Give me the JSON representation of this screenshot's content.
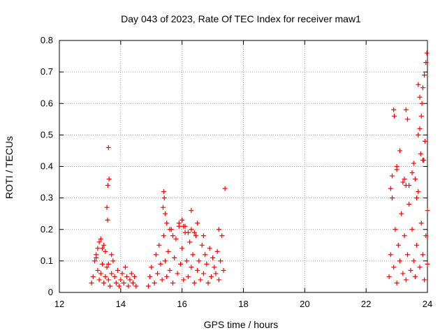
{
  "chart_data": {
    "type": "scatter",
    "title": "Day 043 of 2023, Rate Of TEC Index for receiver maw1",
    "xlabel": "GPS time / hours",
    "ylabel": "ROTI / TECUs",
    "xlim": [
      12,
      24
    ],
    "ylim": [
      0,
      0.8
    ],
    "xticks": [
      "12",
      "14",
      "16",
      "18",
      "20",
      "22",
      "24"
    ],
    "yticks": [
      "0",
      "0.1",
      "0.2",
      "0.3",
      "0.4",
      "0.5",
      "0.6",
      "0.7",
      "0.8"
    ],
    "grid": true,
    "marker": "plus",
    "color": "#ff0000",
    "series": [
      {
        "x": [
          13.05,
          13.1,
          13.15,
          13.2,
          13.25,
          13.3,
          13.35,
          13.4,
          13.45,
          13.5,
          13.55,
          13.6,
          13.65,
          13.7,
          13.75,
          13.8,
          13.85,
          13.9,
          13.95,
          14.0,
          14.05,
          14.1,
          14.15,
          14.2,
          14.25,
          14.3,
          14.35,
          14.4,
          14.45,
          14.5,
          13.3,
          13.35,
          13.6,
          13.62,
          13.58,
          13.55,
          13.57,
          13.45,
          13.4,
          13.5,
          13.6,
          13.7,
          13.2,
          13.25,
          14.9,
          14.95,
          15.0,
          15.1,
          15.15,
          15.2,
          15.25,
          15.3,
          15.35,
          15.4,
          15.45,
          15.5,
          15.55,
          15.6,
          15.65,
          15.7,
          15.75,
          15.8,
          15.85,
          15.9,
          15.95,
          16.0,
          16.05,
          16.1,
          16.15,
          16.2,
          16.25,
          16.3,
          16.35,
          16.4,
          16.45,
          16.5,
          16.55,
          16.6,
          16.65,
          16.7,
          16.75,
          16.8,
          16.85,
          16.9,
          16.95,
          17.0,
          17.05,
          17.1,
          17.15,
          17.2,
          17.25,
          17.3,
          17.35,
          15.4,
          15.42,
          15.45,
          15.38,
          15.5,
          15.6,
          15.9,
          16.0,
          16.1,
          16.2,
          16.3,
          16.4,
          16.5,
          16.7,
          17.2,
          17.4,
          16.3,
          16.05,
          15.7,
          22.75,
          22.8,
          22.85,
          22.9,
          22.95,
          23.0,
          23.05,
          23.1,
          23.15,
          23.2,
          23.25,
          23.3,
          23.35,
          23.4,
          23.45,
          23.5,
          23.55,
          23.6,
          23.65,
          23.7,
          23.75,
          23.8,
          23.85,
          23.9,
          23.95,
          24.0,
          22.9,
          22.92,
          23.0,
          23.3,
          23.35,
          23.2,
          23.7,
          23.75,
          23.8,
          23.78,
          23.82,
          23.85,
          23.9,
          23.95,
          23.98,
          23.85,
          23.6,
          23.5,
          23.4,
          23.1,
          22.8,
          22.85,
          23.0,
          23.25,
          23.3,
          23.55,
          23.65,
          23.88,
          23.92,
          24.0,
          23.7,
          23.75
        ],
        "y": [
          0.03,
          0.05,
          0.1,
          0.12,
          0.07,
          0.04,
          0.06,
          0.09,
          0.03,
          0.05,
          0.08,
          0.04,
          0.02,
          0.06,
          0.1,
          0.05,
          0.03,
          0.07,
          0.02,
          0.04,
          0.06,
          0.03,
          0.08,
          0.05,
          0.02,
          0.04,
          0.06,
          0.03,
          0.05,
          0.02,
          0.16,
          0.17,
          0.46,
          0.36,
          0.34,
          0.27,
          0.23,
          0.15,
          0.14,
          0.13,
          0.09,
          0.12,
          0.11,
          0.14,
          0.02,
          0.05,
          0.08,
          0.03,
          0.12,
          0.06,
          0.15,
          0.09,
          0.04,
          0.18,
          0.1,
          0.05,
          0.13,
          0.07,
          0.2,
          0.03,
          0.11,
          0.17,
          0.06,
          0.21,
          0.09,
          0.14,
          0.04,
          0.19,
          0.1,
          0.05,
          0.16,
          0.08,
          0.12,
          0.03,
          0.18,
          0.07,
          0.1,
          0.04,
          0.15,
          0.06,
          0.12,
          0.09,
          0.03,
          0.14,
          0.05,
          0.11,
          0.08,
          0.06,
          0.13,
          0.04,
          0.1,
          0.18,
          0.07,
          0.32,
          0.3,
          0.25,
          0.27,
          0.22,
          0.2,
          0.22,
          0.23,
          0.21,
          0.19,
          0.2,
          0.19,
          0.22,
          0.18,
          0.2,
          0.33,
          0.26,
          0.21,
          0.18,
          0.05,
          0.12,
          0.3,
          0.08,
          0.2,
          0.03,
          0.15,
          0.1,
          0.25,
          0.06,
          0.18,
          0.04,
          0.12,
          0.28,
          0.07,
          0.2,
          0.1,
          0.05,
          0.15,
          0.32,
          0.08,
          0.22,
          0.12,
          0.04,
          0.18,
          0.09,
          0.58,
          0.56,
          0.4,
          0.58,
          0.55,
          0.35,
          0.5,
          0.52,
          0.56,
          0.44,
          0.6,
          0.65,
          0.69,
          0.73,
          0.76,
          0.42,
          0.36,
          0.38,
          0.34,
          0.45,
          0.33,
          0.37,
          0.39,
          0.36,
          0.34,
          0.41,
          0.3,
          0.42,
          0.48,
          0.26,
          0.66,
          0.62
        ]
      }
    ]
  }
}
